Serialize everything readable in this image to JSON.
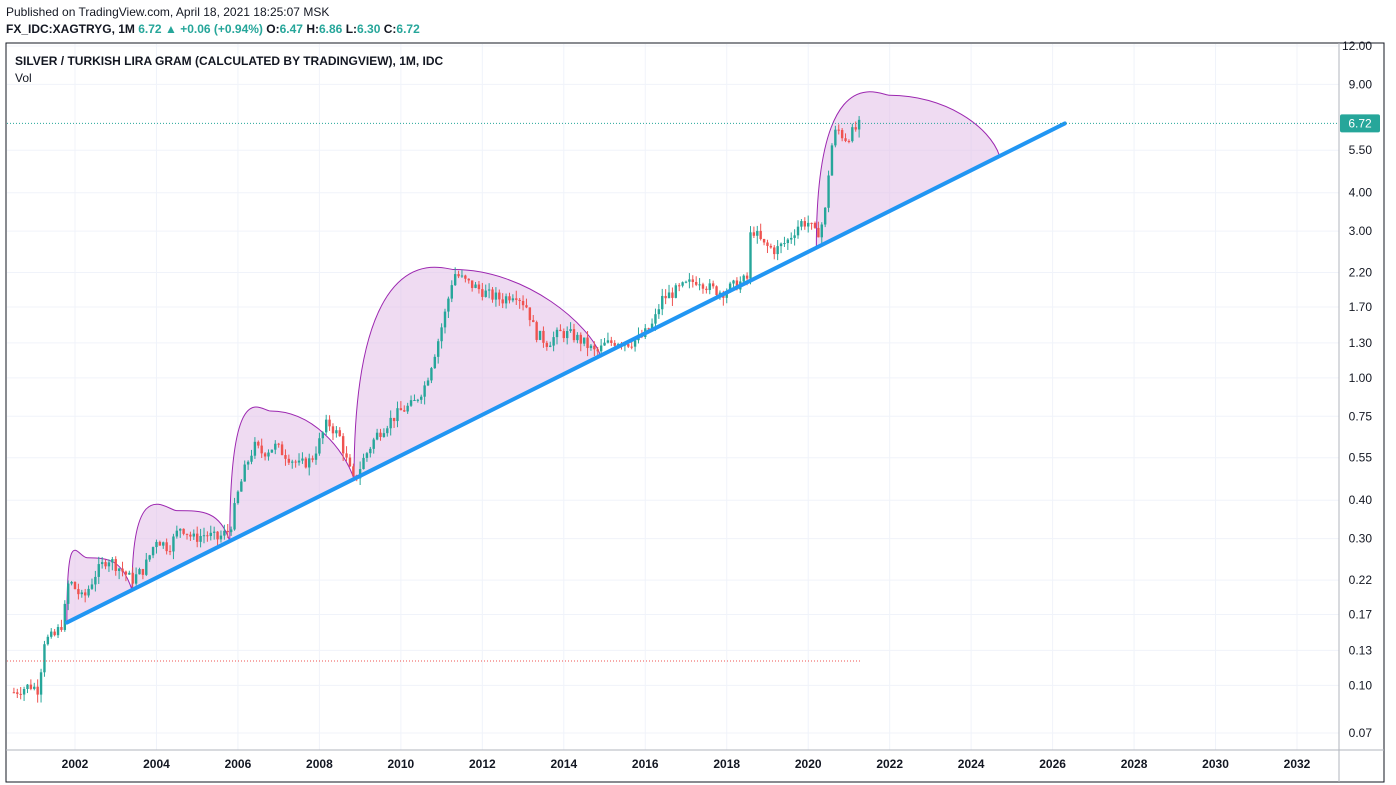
{
  "published": "Published on TradingView.com, April 18, 2021 18:25:07 MSK",
  "quote": {
    "symbol": "FX_IDC:XAGTRYG, 1M",
    "last": "6.72",
    "change": "+0.06 (+0.94%)",
    "open_label": "O:",
    "open": "6.47",
    "high_label": "H:",
    "high": "6.86",
    "low_label": "L:",
    "low": "6.30",
    "close_label": "C:",
    "close": "6.72"
  },
  "legend": {
    "title": "SILVER / TURKISH LIRA GRAM (CALCULATED BY TRADINGVIEW), 1M, IDC",
    "volume": "Vol"
  },
  "colors": {
    "up": "#26a69a",
    "down": "#ef5350",
    "trendline": "#2196f3",
    "arc_fill": "#e1bee7",
    "arc_stroke": "#9c27b0",
    "price_tag": "#26a69a",
    "grid": "#f0f3fa"
  },
  "chart_data": {
    "type": "candlestick",
    "scale": "log",
    "x_ticks": [
      "2002",
      "2004",
      "2006",
      "2008",
      "2010",
      "2012",
      "2014",
      "2016",
      "2018",
      "2020",
      "2022",
      "2024",
      "2026",
      "2028",
      "2030",
      "2032"
    ],
    "y_ticks": [
      "12.00",
      "9.00",
      "5.50",
      "4.00",
      "3.00",
      "2.20",
      "1.70",
      "1.30",
      "1.00",
      "0.75",
      "0.55",
      "0.40",
      "0.30",
      "0.22",
      "0.17",
      "0.13",
      "0.10",
      "0.07"
    ],
    "last_price": "6.72",
    "last_price_line": 6.72,
    "low_marker_line": 0.12,
    "price_path": [
      [
        2000.5,
        0.095
      ],
      [
        2000.9,
        0.1
      ],
      [
        2001.1,
        0.097
      ],
      [
        2001.25,
        0.14
      ],
      [
        2001.5,
        0.145
      ],
      [
        2001.7,
        0.16
      ],
      [
        2001.85,
        0.22
      ],
      [
        2002.2,
        0.19
      ],
      [
        2002.5,
        0.23
      ],
      [
        2002.8,
        0.26
      ],
      [
        2003.1,
        0.24
      ],
      [
        2003.4,
        0.22
      ],
      [
        2003.7,
        0.24
      ],
      [
        2004.0,
        0.3
      ],
      [
        2004.3,
        0.28
      ],
      [
        2004.6,
        0.33
      ],
      [
        2004.9,
        0.3
      ],
      [
        2005.2,
        0.31
      ],
      [
        2005.5,
        0.3
      ],
      [
        2005.8,
        0.32
      ],
      [
        2006.0,
        0.42
      ],
      [
        2006.2,
        0.52
      ],
      [
        2006.4,
        0.6
      ],
      [
        2006.6,
        0.57
      ],
      [
        2006.9,
        0.6
      ],
      [
        2007.2,
        0.56
      ],
      [
        2007.5,
        0.52
      ],
      [
        2007.8,
        0.54
      ],
      [
        2008.0,
        0.62
      ],
      [
        2008.2,
        0.72
      ],
      [
        2008.5,
        0.64
      ],
      [
        2008.7,
        0.52
      ],
      [
        2008.85,
        0.46
      ],
      [
        2009.1,
        0.55
      ],
      [
        2009.4,
        0.65
      ],
      [
        2009.7,
        0.72
      ],
      [
        2010.0,
        0.78
      ],
      [
        2010.3,
        0.82
      ],
      [
        2010.6,
        0.95
      ],
      [
        2010.9,
        1.3
      ],
      [
        2011.1,
        1.65
      ],
      [
        2011.3,
        2.2
      ],
      [
        2011.6,
        2.05
      ],
      [
        2011.9,
        1.95
      ],
      [
        2012.2,
        1.85
      ],
      [
        2012.5,
        1.8
      ],
      [
        2012.8,
        1.9
      ],
      [
        2013.1,
        1.7
      ],
      [
        2013.3,
        1.4
      ],
      [
        2013.6,
        1.3
      ],
      [
        2013.9,
        1.4
      ],
      [
        2014.2,
        1.38
      ],
      [
        2014.5,
        1.3
      ],
      [
        2014.8,
        1.2
      ],
      [
        2015.0,
        1.28
      ],
      [
        2015.3,
        1.32
      ],
      [
        2015.6,
        1.3
      ],
      [
        2015.9,
        1.35
      ],
      [
        2016.2,
        1.5
      ],
      [
        2016.4,
        1.8
      ],
      [
        2016.7,
        1.9
      ],
      [
        2017.0,
        2.0
      ],
      [
        2017.3,
        2.1
      ],
      [
        2017.6,
        1.95
      ],
      [
        2017.9,
        1.9
      ],
      [
        2018.2,
        2.0
      ],
      [
        2018.5,
        2.1
      ],
      [
        2018.6,
        3.1
      ],
      [
        2018.9,
        2.7
      ],
      [
        2019.2,
        2.6
      ],
      [
        2019.5,
        2.8
      ],
      [
        2019.8,
        3.2
      ],
      [
        2020.0,
        3.2
      ],
      [
        2020.2,
        2.9
      ],
      [
        2020.4,
        3.3
      ],
      [
        2020.55,
        5.5
      ],
      [
        2020.7,
        6.5
      ],
      [
        2020.9,
        6.0
      ],
      [
        2021.1,
        6.3
      ],
      [
        2021.3,
        6.72
      ]
    ],
    "trendline": [
      [
        2001.8,
        0.16
      ],
      [
        2026.3,
        6.72
      ]
    ],
    "arcs": [
      {
        "x_start": 2001.8,
        "x_end": 2003.4,
        "peak_x": 2002.3,
        "peak_y": 0.26
      },
      {
        "x_start": 2003.4,
        "x_end": 2005.8,
        "peak_x": 2004.5,
        "peak_y": 0.37
      },
      {
        "x_start": 2005.8,
        "x_end": 2008.85,
        "peak_x": 2006.8,
        "peak_y": 0.78
      },
      {
        "x_start": 2008.85,
        "x_end": 2014.9,
        "peak_x": 2011.3,
        "peak_y": 2.25
      },
      {
        "x_start": 2020.2,
        "x_end": 2024.7,
        "peak_x": 2022.0,
        "peak_y": 8.3
      }
    ]
  }
}
